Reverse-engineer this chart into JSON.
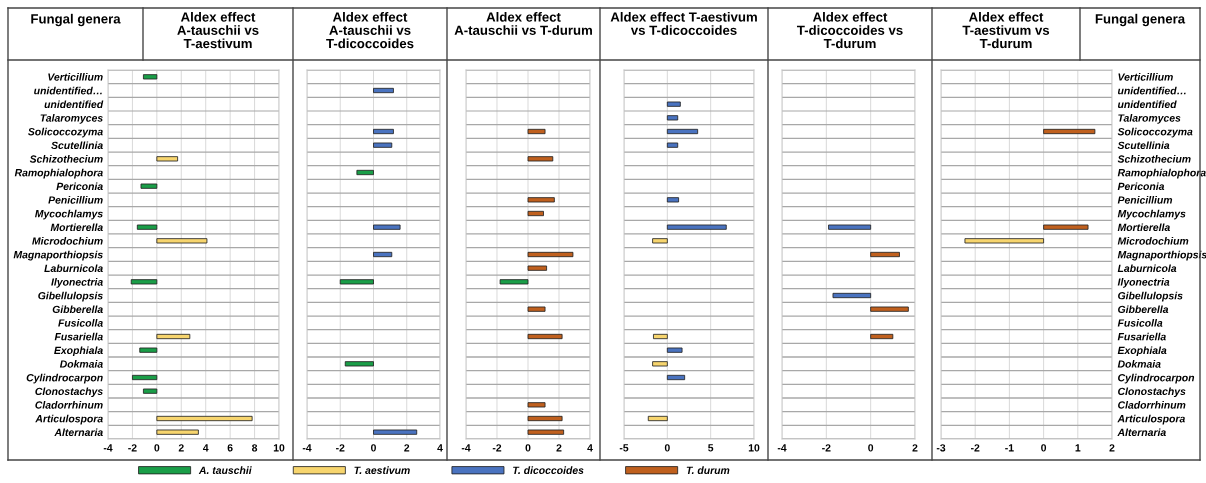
{
  "chart_data": [
    {
      "type": "bar",
      "orientation": "horizontal",
      "title": "Aldex effect A-tauschii vs T-aestivum",
      "ylabel": "Fungal genera",
      "legend": "bottom",
      "grid": true,
      "categories": [
        "Verticillium",
        "unidentified…",
        "unidentified",
        "Talaromyces",
        "Solicoccozyma",
        "Scutellinia",
        "Schizothecium",
        "Ramophialophora",
        "Periconia",
        "Penicillium",
        "Mycochlamys",
        "Mortierella",
        "Microdochium",
        "Magnaporthiopsis",
        "Laburnicola",
        "Ilyonectria",
        "Gibellulopsis",
        "Gibberella",
        "Fusicolla",
        "Fusariella",
        "Exophiala",
        "Dokmaia",
        "Cylindrocarpon",
        "Clonostachys",
        "Cladorrhinum",
        "Articulospora",
        "Alternaria"
      ],
      "xlim": [
        -4,
        10
      ],
      "xticks": [
        -4,
        -2,
        0,
        2,
        4,
        6,
        8,
        10
      ],
      "series": [
        {
          "name": "A. tauschii",
          "color": "#1a9e48",
          "values": [
            -1.1,
            null,
            null,
            null,
            null,
            null,
            null,
            null,
            -1.3,
            null,
            null,
            -1.6,
            null,
            null,
            null,
            -2.1,
            null,
            null,
            null,
            null,
            -1.4,
            null,
            -2.0,
            -1.1,
            null,
            null,
            null
          ]
        },
        {
          "name": "T. aestivum",
          "color": "#f7d56e",
          "values": [
            null,
            null,
            null,
            null,
            null,
            null,
            1.7,
            null,
            null,
            null,
            null,
            null,
            4.1,
            null,
            null,
            null,
            null,
            null,
            null,
            2.7,
            null,
            null,
            null,
            null,
            null,
            7.8,
            3.4
          ]
        }
      ]
    },
    {
      "type": "bar",
      "orientation": "horizontal",
      "title": "Aldex effect A-tauschii vs T-dicoccoides",
      "grid": true,
      "tick_labels": "x",
      "categories": [
        "Verticillium",
        "unidentified…",
        "unidentified",
        "Talaromyces",
        "Solicoccozyma",
        "Scutellinia",
        "Schizothecium",
        "Ramophialophora",
        "Periconia",
        "Penicillium",
        "Mycochlamys",
        "Mortierella",
        "Microdochium",
        "Magnaporthiopsis",
        "Laburnicola",
        "Ilyonectria",
        "Gibellulopsis",
        "Gibberella",
        "Fusicolla",
        "Fusariella",
        "Exophiala",
        "Dokmaia",
        "Cylindrocarpon",
        "Clonostachys",
        "Cladorrhinum",
        "Articulospora",
        "Alternaria"
      ],
      "xlim": [
        -4,
        4
      ],
      "xticks": [
        -4,
        -2,
        0,
        2,
        4
      ],
      "series": [
        {
          "name": "A. tauschii",
          "color": "#1a9e48",
          "values": [
            null,
            null,
            null,
            null,
            null,
            null,
            null,
            -1.0,
            null,
            null,
            null,
            null,
            null,
            null,
            null,
            -2.0,
            null,
            null,
            null,
            null,
            null,
            -1.7,
            null,
            null,
            null,
            null,
            null
          ]
        },
        {
          "name": "T. dicoccoides",
          "color": "#4a73c0",
          "values": [
            null,
            1.2,
            null,
            null,
            1.2,
            1.1,
            null,
            null,
            null,
            null,
            null,
            1.6,
            null,
            1.1,
            null,
            null,
            null,
            null,
            null,
            null,
            null,
            null,
            null,
            null,
            null,
            null,
            2.6
          ]
        }
      ]
    },
    {
      "type": "bar",
      "orientation": "horizontal",
      "title": "Aldex effect A-tauschii vs T-durum",
      "grid": true,
      "tick_labels": "x",
      "categories": [
        "Verticillium",
        "unidentified…",
        "unidentified",
        "Talaromyces",
        "Solicoccozyma",
        "Scutellinia",
        "Schizothecium",
        "Ramophialophora",
        "Periconia",
        "Penicillium",
        "Mycochlamys",
        "Mortierella",
        "Microdochium",
        "Magnaporthiopsis",
        "Laburnicola",
        "Ilyonectria",
        "Gibellulopsis",
        "Gibberella",
        "Fusicolla",
        "Fusariella",
        "Exophiala",
        "Dokmaia",
        "Cylindrocarpon",
        "Clonostachys",
        "Cladorrhinum",
        "Articulospora",
        "Alternaria"
      ],
      "xlim": [
        -4,
        4
      ],
      "xticks": [
        -4,
        -2,
        0,
        2,
        4
      ],
      "series": [
        {
          "name": "A. tauschii",
          "color": "#1a9e48",
          "values": [
            null,
            null,
            null,
            null,
            null,
            null,
            null,
            null,
            null,
            null,
            null,
            null,
            null,
            null,
            null,
            -1.8,
            null,
            null,
            null,
            null,
            null,
            null,
            null,
            null,
            null,
            null,
            null
          ]
        },
        {
          "name": "T. durum",
          "color": "#c0601e",
          "values": [
            null,
            null,
            null,
            null,
            1.1,
            null,
            1.6,
            null,
            null,
            1.7,
            1.0,
            null,
            null,
            2.9,
            1.2,
            null,
            null,
            1.1,
            null,
            2.2,
            null,
            null,
            null,
            null,
            1.1,
            2.2,
            2.3
          ]
        }
      ]
    },
    {
      "type": "bar",
      "orientation": "horizontal",
      "title": "Aldex effect T-aestivum vs T-dicoccoides",
      "grid": true,
      "tick_labels": "x",
      "categories": [
        "Verticillium",
        "unidentified…",
        "unidentified",
        "Talaromyces",
        "Solicoccozyma",
        "Scutellinia",
        "Schizothecium",
        "Ramophialophora",
        "Periconia",
        "Penicillium",
        "Mycochlamys",
        "Mortierella",
        "Microdochium",
        "Magnaporthiopsis",
        "Laburnicola",
        "Ilyonectria",
        "Gibellulopsis",
        "Gibberella",
        "Fusicolla",
        "Fusariella",
        "Exophiala",
        "Dokmaia",
        "Cylindrocarpon",
        "Clonostachys",
        "Cladorrhinum",
        "Articulospora",
        "Alternaria"
      ],
      "xlim": [
        -5,
        10
      ],
      "xticks": [
        -5,
        0,
        5,
        10
      ],
      "series": [
        {
          "name": "T. aestivum",
          "color": "#f7d56e",
          "values": [
            null,
            null,
            null,
            null,
            null,
            null,
            null,
            null,
            null,
            null,
            null,
            null,
            -1.7,
            null,
            null,
            null,
            null,
            null,
            null,
            -1.6,
            null,
            -1.7,
            null,
            null,
            null,
            -2.2,
            null
          ]
        },
        {
          "name": "T. dicoccoides",
          "color": "#4a73c0",
          "values": [
            null,
            null,
            1.5,
            1.2,
            3.5,
            1.2,
            null,
            null,
            null,
            1.3,
            null,
            6.8,
            null,
            null,
            null,
            null,
            null,
            null,
            null,
            null,
            1.7,
            null,
            2.0,
            null,
            null,
            null,
            null
          ]
        }
      ]
    },
    {
      "type": "bar",
      "orientation": "horizontal",
      "title": "Aldex effect T-dicoccoides vs T-durum",
      "grid": true,
      "tick_labels": "x",
      "categories": [
        "Verticillium",
        "unidentified…",
        "unidentified",
        "Talaromyces",
        "Solicoccozyma",
        "Scutellinia",
        "Schizothecium",
        "Ramophialophora",
        "Periconia",
        "Penicillium",
        "Mycochlamys",
        "Mortierella",
        "Microdochium",
        "Magnaporthiopsis",
        "Laburnicola",
        "Ilyonectria",
        "Gibellulopsis",
        "Gibberella",
        "Fusicolla",
        "Fusariella",
        "Exophiala",
        "Dokmaia",
        "Cylindrocarpon",
        "Clonostachys",
        "Cladorrhinum",
        "Articulospora",
        "Alternaria"
      ],
      "xlim": [
        -4,
        2
      ],
      "xticks": [
        -4,
        -2,
        0,
        2
      ],
      "series": [
        {
          "name": "T. dicoccoides",
          "color": "#4a73c0",
          "values": [
            null,
            null,
            null,
            null,
            null,
            null,
            null,
            null,
            null,
            null,
            null,
            -1.9,
            null,
            null,
            null,
            null,
            -1.7,
            null,
            null,
            null,
            null,
            null,
            null,
            null,
            null,
            null,
            null
          ]
        },
        {
          "name": "T. durum",
          "color": "#c0601e",
          "values": [
            null,
            null,
            null,
            null,
            null,
            null,
            null,
            null,
            null,
            null,
            null,
            null,
            null,
            1.3,
            null,
            null,
            null,
            1.7,
            null,
            1.0,
            null,
            null,
            null,
            null,
            null,
            null,
            null
          ]
        }
      ]
    },
    {
      "type": "bar",
      "orientation": "horizontal",
      "title": "Aldex effect T-aestivum vs T-durum",
      "y2label": "Fungal genera",
      "grid": true,
      "categories": [
        "Verticillium",
        "unidentified…",
        "unidentified",
        "Talaromyces",
        "Solicoccozyma",
        "Scutellinia",
        "Schizothecium",
        "Ramophialophora",
        "Periconia",
        "Penicillium",
        "Mycochlamys",
        "Mortierella",
        "Microdochium",
        "Magnaporthiopsis",
        "Laburnicola",
        "Ilyonectria",
        "Gibellulopsis",
        "Gibberella",
        "Fusicolla",
        "Fusariella",
        "Exophiala",
        "Dokmaia",
        "Cylindrocarpon",
        "Clonostachys",
        "Cladorrhinum",
        "Articulospora",
        "Alternaria"
      ],
      "xlim": [
        -3,
        2
      ],
      "xticks": [
        -3,
        -2,
        -1,
        0,
        1,
        2
      ],
      "series": [
        {
          "name": "T. aestivum",
          "color": "#f7d56e",
          "values": [
            null,
            null,
            null,
            null,
            null,
            null,
            null,
            null,
            null,
            null,
            null,
            null,
            -2.3,
            null,
            null,
            null,
            null,
            null,
            null,
            null,
            null,
            null,
            null,
            null,
            null,
            null,
            null
          ]
        },
        {
          "name": "T. durum",
          "color": "#c0601e",
          "values": [
            null,
            null,
            null,
            null,
            1.5,
            null,
            null,
            null,
            null,
            null,
            null,
            1.3,
            null,
            null,
            null,
            null,
            null,
            null,
            null,
            null,
            null,
            null,
            null,
            null,
            null,
            null,
            null
          ]
        }
      ]
    }
  ]
}
